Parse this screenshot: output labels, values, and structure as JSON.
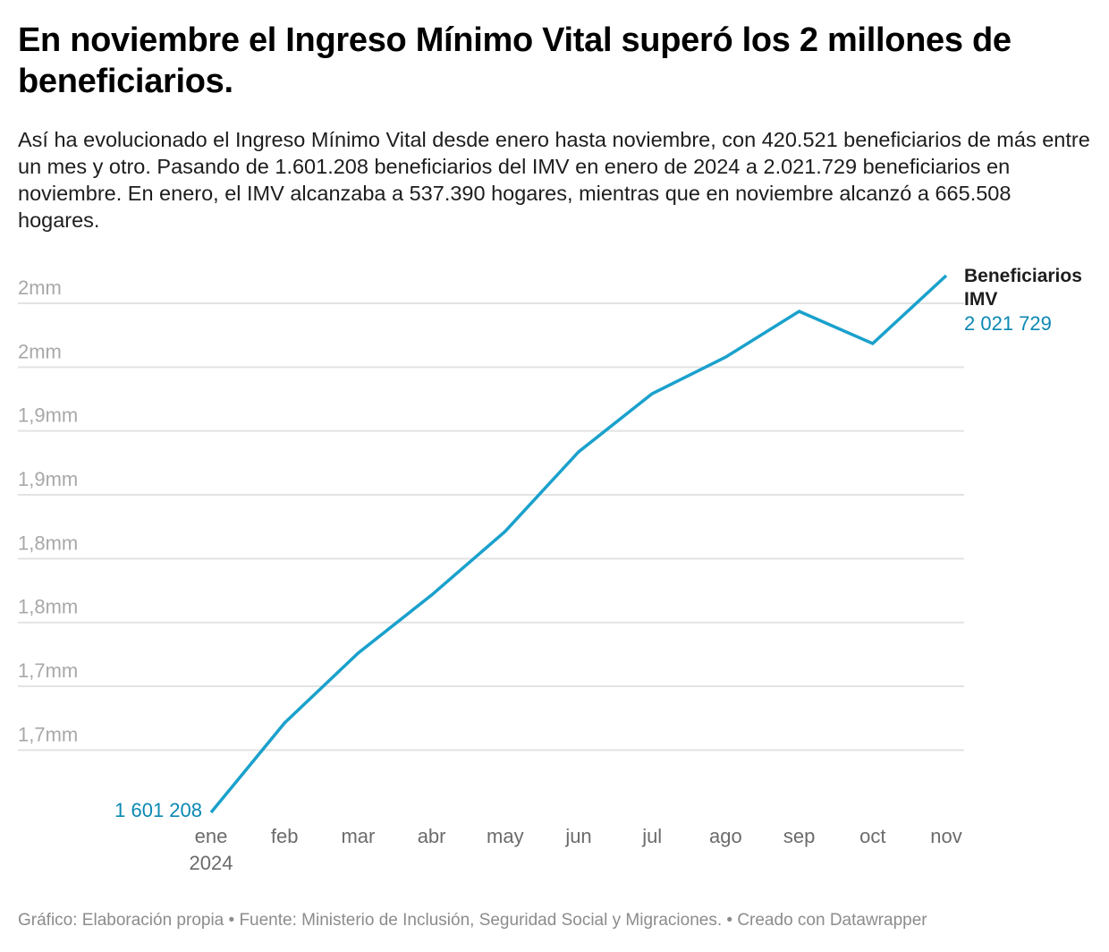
{
  "header": {
    "title": "En noviembre el Ingreso Mínimo Vital superó los 2 millones de beneficiarios.",
    "description": "Así ha evolucionado el Ingreso Mínimo Vital desde enero hasta noviembre, con 420.521 beneficiarios de más entre un mes y otro. Pasando de 1.601.208 beneficiarios del IMV en enero de 2024 a 2.021.729 beneficiarios en noviembre. En enero, el IMV alcanzaba a 537.390 hogares, mientras que en noviembre alcanzó a 665.508 hogares."
  },
  "footer": {
    "text": "Gráfico: Elaboración propia • Fuente: Ministerio de Inclusión, Seguridad Social y Migraciones. • Creado con Datawrapper"
  },
  "chart_data": {
    "type": "line",
    "title": "En noviembre el Ingreso Mínimo Vital superó los 2 millones de beneficiarios.",
    "xlabel": "",
    "ylabel": "",
    "categories": [
      "ene",
      "feb",
      "mar",
      "abr",
      "may",
      "jun",
      "jul",
      "ago",
      "sep",
      "oct",
      "nov"
    ],
    "x_sublabels": [
      "2024",
      "",
      "",
      "",
      "",
      "",
      "",
      "",
      "",
      "",
      ""
    ],
    "series": [
      {
        "name": "Beneficiarios IMV",
        "color": "#1aa1cc",
        "values": [
          1601208,
          1671300,
          1726000,
          1771500,
          1821300,
          1883700,
          1929200,
          1957900,
          1993700,
          1968500,
          2021729
        ]
      }
    ],
    "yticks": [
      {
        "value": 2000000,
        "label": "2mm"
      },
      {
        "value": 1950000,
        "label": "2mm"
      },
      {
        "value": 1900000,
        "label": "1,9mm"
      },
      {
        "value": 1850000,
        "label": "1,9mm"
      },
      {
        "value": 1800000,
        "label": "1,8mm"
      },
      {
        "value": 1750000,
        "label": "1,8mm"
      },
      {
        "value": 1700000,
        "label": "1,7mm"
      },
      {
        "value": 1650000,
        "label": "1,7mm"
      }
    ],
    "ylim": [
      1601208,
      2021729
    ],
    "grid": true,
    "start_label": "1 601 208",
    "end_label_name": [
      "Beneficiarios",
      "IMV"
    ],
    "end_label_value": "2 021 729",
    "legend": "direct-label-right"
  }
}
